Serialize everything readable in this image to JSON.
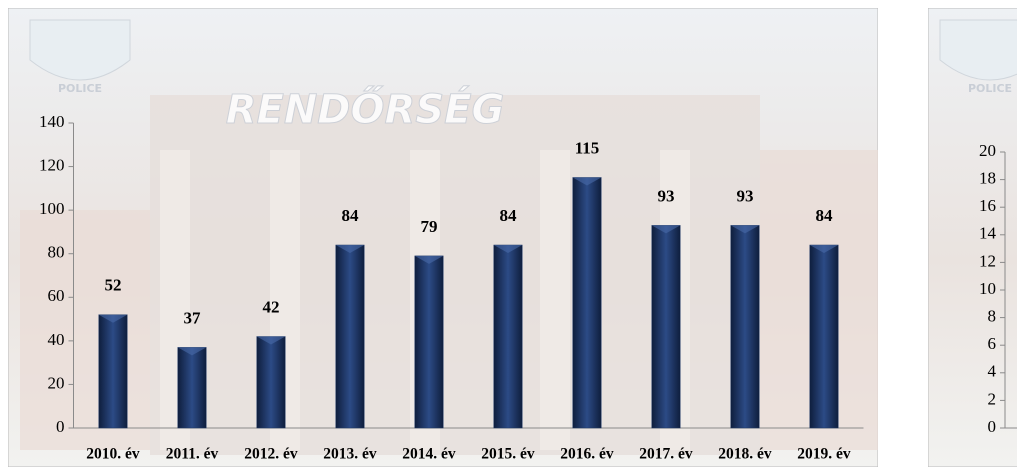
{
  "chart_data": [
    {
      "type": "bar",
      "photo": {
        "sign": "RENDŐRSÉG",
        "badge": "POLICE"
      },
      "categories": [
        "2010. év",
        "2011. év",
        "2012. év",
        "2013. év",
        "2014. év",
        "2015. év",
        "2016. év",
        "2017. év",
        "2018. év",
        "2019. év"
      ],
      "values": [
        52,
        37,
        42,
        84,
        79,
        84,
        115,
        93,
        93,
        84
      ],
      "color": "#1f3864",
      "ylim": [
        0,
        140
      ],
      "yticks": [
        0,
        20,
        40,
        60,
        80,
        100,
        120,
        140
      ]
    },
    {
      "type": "bar",
      "photo": {
        "badge": "POLICE"
      },
      "categories": [],
      "values": [],
      "color": "#1f3864",
      "ylim": [
        0,
        20
      ],
      "yticks": [
        0,
        2,
        4,
        6,
        8,
        10,
        12,
        14,
        16,
        18,
        20
      ]
    }
  ]
}
